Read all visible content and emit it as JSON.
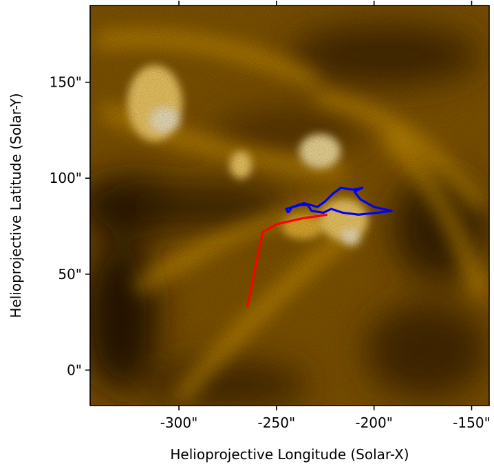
{
  "figure": {
    "x_axis": {
      "label": "Helioprojective Longitude (Solar-X)",
      "ticks": [
        {
          "value": -300,
          "label": "-300\""
        },
        {
          "value": -250,
          "label": "-250\""
        },
        {
          "value": -200,
          "label": "-200\""
        },
        {
          "value": -150,
          "label": "-150\""
        }
      ],
      "range": [
        -345.5,
        -141
      ]
    },
    "y_axis": {
      "label": "Helioprojective Latitude (Solar-Y)",
      "ticks": [
        {
          "value": 0,
          "label": "0\""
        },
        {
          "value": 50,
          "label": "50\""
        },
        {
          "value": 100,
          "label": "100\""
        },
        {
          "value": 150,
          "label": "150\""
        }
      ],
      "range": [
        -18.5,
        190
      ]
    },
    "colors": {
      "image_dark": "#1a0f00",
      "image_mid": "#a06a00",
      "image_bright": "#ffd97a",
      "red_path": "#ff0000",
      "blue_contour": "#0000ff"
    },
    "overlays": {
      "red_path": [
        [
          -265,
          33
        ],
        [
          -257,
          72
        ],
        [
          -250,
          76
        ],
        [
          -237,
          79
        ],
        [
          -224,
          81
        ]
      ],
      "blue_contour": [
        [
          -244,
          82
        ],
        [
          -245,
          84
        ],
        [
          -238,
          86
        ],
        [
          -234,
          86
        ],
        [
          -232,
          83
        ],
        [
          -226,
          82
        ],
        [
          -222,
          84
        ],
        [
          -216,
          82
        ],
        [
          -208,
          81
        ],
        [
          -198,
          82
        ],
        [
          -191,
          83
        ],
        [
          -200,
          85
        ],
        [
          -207,
          89
        ],
        [
          -210,
          93
        ],
        [
          -206,
          95
        ],
        [
          -211,
          94
        ],
        [
          -217,
          95
        ],
        [
          -221,
          92
        ],
        [
          -225,
          88
        ],
        [
          -229,
          85
        ],
        [
          -236,
          87
        ],
        [
          -242,
          85
        ],
        [
          -244,
          82
        ]
      ]
    }
  }
}
